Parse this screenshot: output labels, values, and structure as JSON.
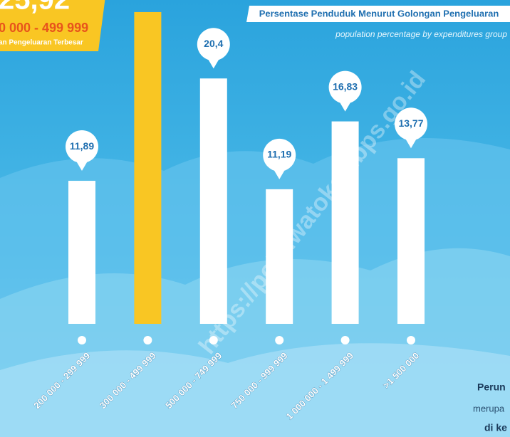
{
  "chart_data": {
    "type": "bar",
    "title": "Persentase Penduduk Menurut Golongan Pengeluaran",
    "subtitle": "population percentage by expenditures group",
    "categories": [
      "200 000 - 299 999",
      "300 000 - 499 999",
      "500 000 - 749 999",
      "750 000 - 999 999",
      "1 000 000 - 1 499 999",
      ">1 500 000"
    ],
    "values": [
      11.89,
      25.92,
      20.4,
      11.19,
      16.83,
      13.77
    ],
    "value_labels": [
      "11,89",
      null,
      "20,4",
      "11,19",
      "16,83",
      "13,77"
    ],
    "colors": [
      "#ffffff",
      "#f9c623",
      "#ffffff",
      "#ffffff",
      "#ffffff",
      "#ffffff"
    ],
    "highlight": {
      "value_label": "25,92",
      "range": "0 000 - 499 999",
      "caption": "an Pengeluaran Terbesar"
    }
  },
  "side_note": [
    "Perun",
    "merupa",
    "di ke"
  ],
  "watermark": "https://pohuwatokab.bps.go.id"
}
